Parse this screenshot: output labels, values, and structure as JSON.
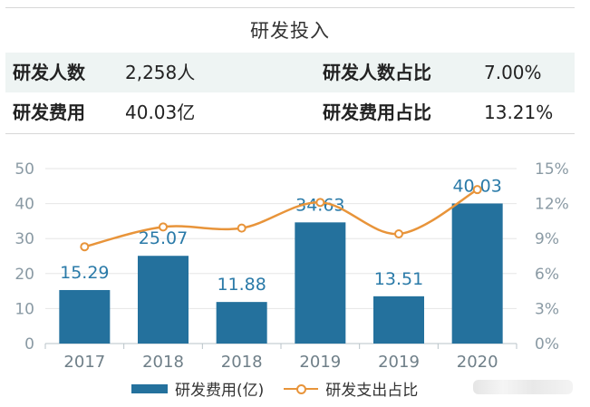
{
  "title": "研发投入",
  "stats": [
    {
      "label": "研发人数",
      "value": "2,258人",
      "label2": "研发人数占比",
      "value2": "7.00%"
    },
    {
      "label": "研发费用",
      "value": "40.03亿",
      "label2": "研发费用占比",
      "value2": "13.21%"
    }
  ],
  "chart_data": {
    "type": "bar",
    "categories": [
      "2017",
      "2018",
      "2018",
      "2019",
      "2019",
      "2020"
    ],
    "series": [
      {
        "name": "研发费用(亿)",
        "type": "bar",
        "axis": "left",
        "values": [
          15.29,
          25.07,
          11.88,
          34.63,
          13.51,
          40.03
        ],
        "labels": [
          "15.29",
          "25.07",
          "11.88",
          "34.63",
          "13.51",
          "40.03"
        ]
      },
      {
        "name": "研发支出占比",
        "type": "line",
        "axis": "right",
        "values": [
          8.3,
          10.0,
          9.9,
          12.1,
          9.4,
          13.2
        ]
      }
    ],
    "y_left": {
      "min": 0,
      "max": 50,
      "ticks": [
        "0",
        "10",
        "20",
        "30",
        "40",
        "50"
      ]
    },
    "y_right": {
      "min": 0,
      "max": 15,
      "ticks": [
        "0%",
        "3%",
        "6%",
        "9%",
        "12%",
        "15%"
      ]
    },
    "grid": true,
    "legend_position": "bottom",
    "colors": {
      "bar": "#24719d",
      "line": "#e8943a",
      "axis_text": "#8a9aa4",
      "label": "#2a7aa8"
    }
  }
}
